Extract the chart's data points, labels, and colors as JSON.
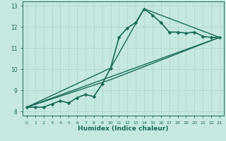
{
  "xlabel": "Humidex (Indice chaleur)",
  "bg_color": "#c5e8e0",
  "grid_color": "#afd8ce",
  "line_color": "#1a6b5a",
  "xlim": [
    -0.5,
    23.5
  ],
  "ylim": [
    7.8,
    13.2
  ],
  "xticks": [
    0,
    1,
    2,
    3,
    4,
    5,
    6,
    7,
    8,
    9,
    10,
    11,
    12,
    13,
    14,
    15,
    16,
    17,
    18,
    19,
    20,
    21,
    22,
    23
  ],
  "yticks": [
    8,
    9,
    10,
    11,
    12,
    13
  ],
  "series": [
    {
      "x": [
        0,
        1,
        2,
        3,
        4,
        5,
        6,
        7,
        8,
        9,
        10,
        11,
        12,
        13,
        14,
        15,
        16,
        17,
        18,
        19,
        20,
        21,
        22,
        23
      ],
      "y": [
        8.2,
        8.2,
        8.2,
        8.35,
        8.5,
        8.4,
        8.65,
        8.8,
        8.7,
        9.3,
        10.05,
        11.5,
        11.95,
        12.2,
        12.85,
        12.55,
        12.2,
        11.75,
        11.75,
        11.7,
        11.75,
        11.55,
        11.5,
        11.5
      ],
      "marker": "D",
      "markersize": 2.5,
      "linewidth": 1.2
    },
    {
      "comment": "straight line from (0,8.2) to (23,11.5)",
      "x": [
        0,
        23
      ],
      "y": [
        8.2,
        11.5
      ],
      "marker": null,
      "markersize": 0,
      "linewidth": 1.0
    },
    {
      "comment": "line from (0,8.2) through (10,9.5) to (23,11.5) - slightly curved",
      "x": [
        0,
        10,
        23
      ],
      "y": [
        8.2,
        9.5,
        11.5
      ],
      "marker": null,
      "markersize": 0,
      "linewidth": 1.0
    },
    {
      "comment": "line from (0,8.2) to (14,12.85) to (23,11.5)",
      "x": [
        0,
        10,
        14,
        23
      ],
      "y": [
        8.2,
        10.05,
        12.85,
        11.5
      ],
      "marker": null,
      "markersize": 0,
      "linewidth": 1.0
    }
  ]
}
